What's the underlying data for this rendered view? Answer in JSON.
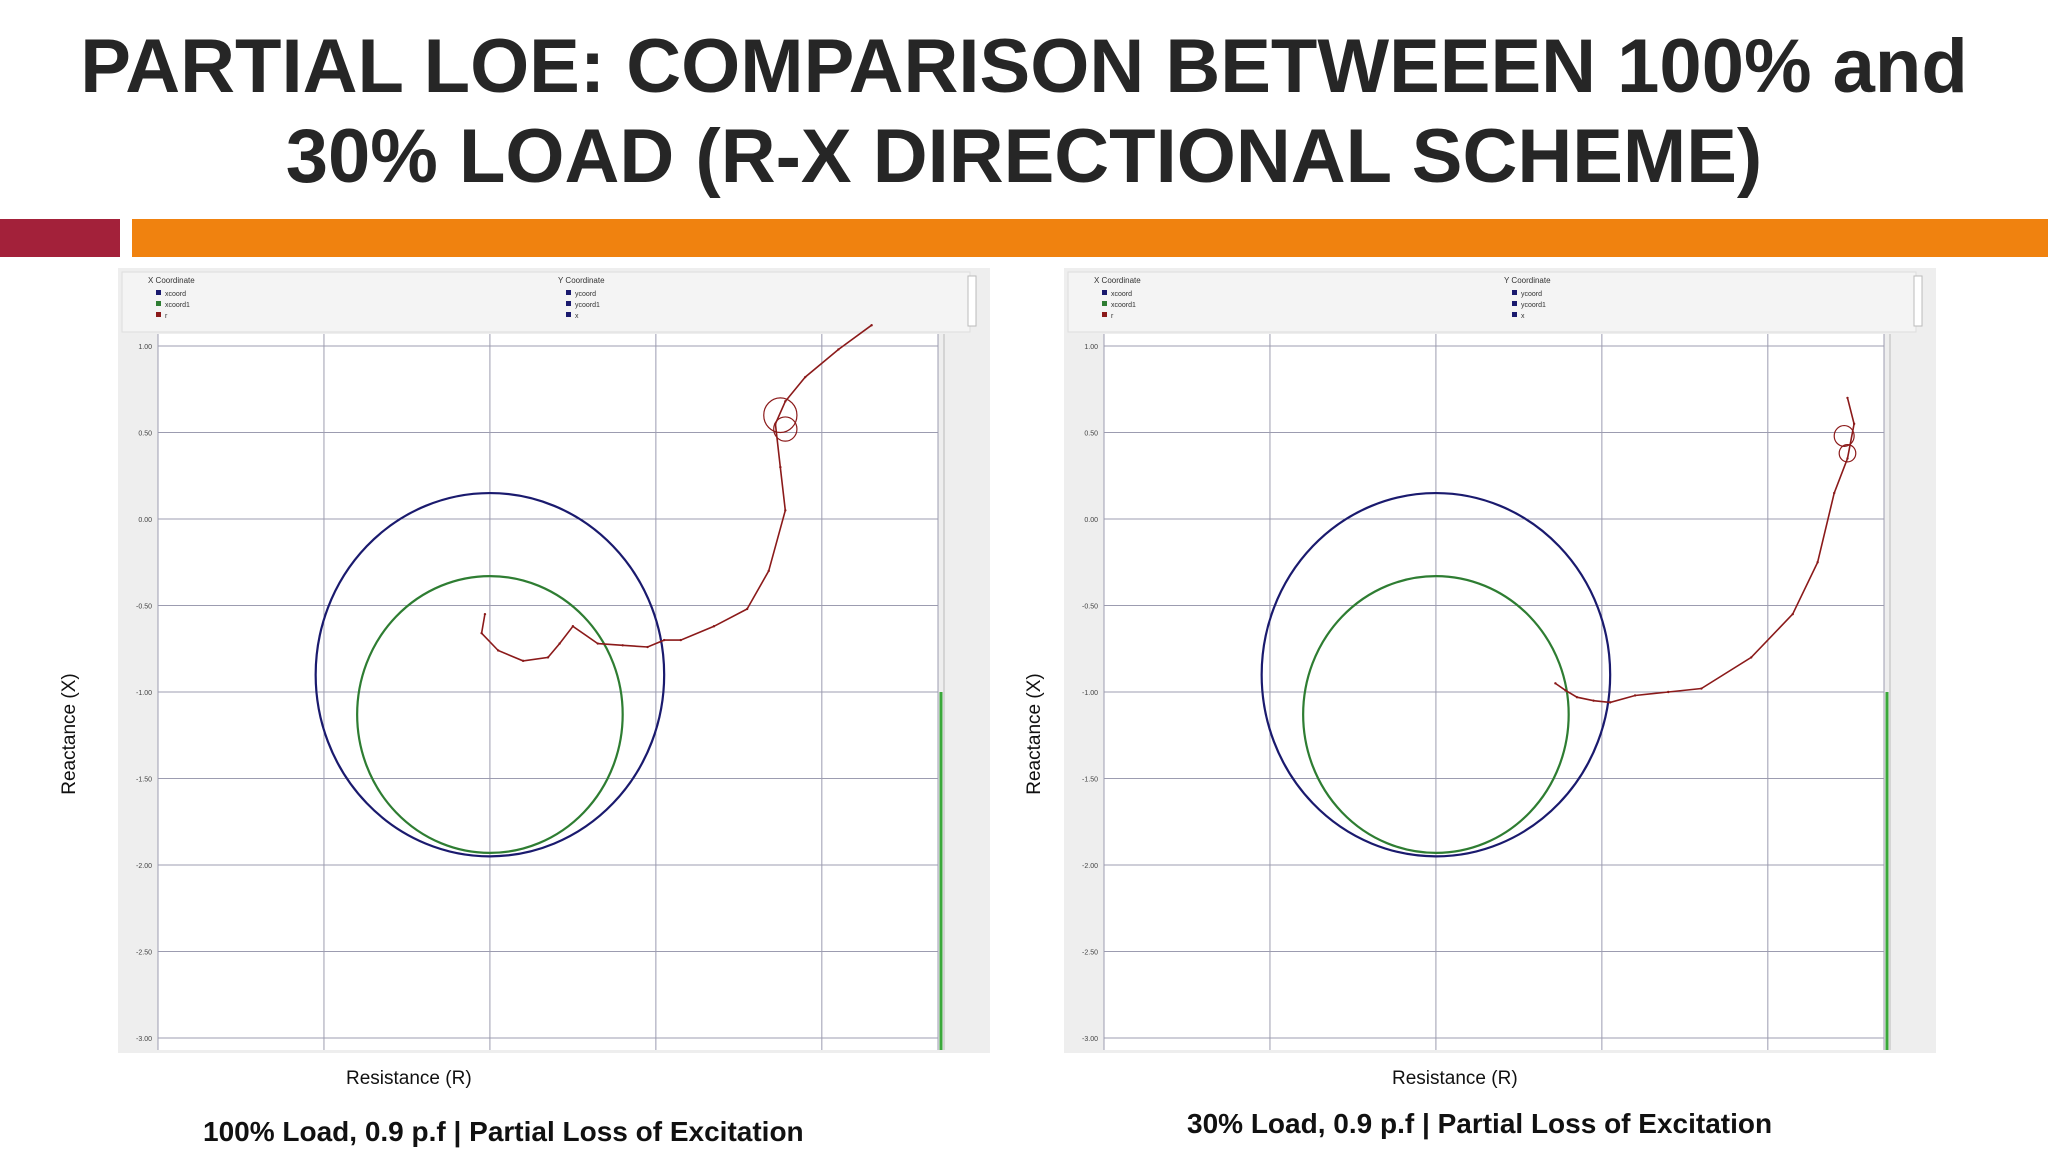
{
  "slide": {
    "title_line1": "PARTIAL LOE: COMPARISON BETWEEEN 100% and",
    "title_line2": "30% LOAD (R-X DIRECTIONAL SCHEME)",
    "accent_colors": {
      "red": "#a3213a",
      "orange": "#f0820f"
    }
  },
  "chart_data": [
    {
      "type": "scatter",
      "caption": "100% Load, 0.9 p.f | Partial Loss of Excitation",
      "xlabel": "Resistance (R)",
      "ylabel": "Reactance (X)",
      "xlim": [
        -2.0,
        2.7
      ],
      "ylim": [
        -3.0,
        1.0
      ],
      "xticks": [
        "-2.0",
        "-1.0",
        "0.0",
        "1.0",
        "2.0"
      ],
      "yticks": [
        "1.00",
        "0.50",
        "0.00",
        "-0.50",
        "-1.00",
        "-1.50",
        "-2.00",
        "-2.50",
        "-3.00"
      ],
      "grid": true,
      "legend": {
        "x_title": "X Coordinate",
        "y_title": "Y Coordinate",
        "x_items": [
          "xcoord",
          "xcoord1",
          "r"
        ],
        "y_items": [
          "ycoord",
          "ycoord1",
          "x"
        ],
        "colors": [
          "#1a1a6e",
          "#2e7d32",
          "#8b1a1a"
        ]
      },
      "circles": [
        {
          "name": "xcoord",
          "cx": 0.0,
          "cy": -0.9,
          "r": 1.05,
          "color": "#1a1a6e"
        },
        {
          "name": "xcoord1",
          "cx": 0.0,
          "cy": -1.13,
          "r": 0.8,
          "color": "#2e7d32"
        }
      ],
      "trajectory": {
        "name": "r",
        "color": "#8b1a1a",
        "points": [
          [
            2.3,
            1.12
          ],
          [
            2.1,
            0.98
          ],
          [
            1.9,
            0.82
          ],
          [
            1.78,
            0.68
          ],
          [
            1.72,
            0.55
          ],
          [
            1.75,
            0.3
          ],
          [
            1.78,
            0.05
          ],
          [
            1.68,
            -0.3
          ],
          [
            1.55,
            -0.52
          ],
          [
            1.35,
            -0.62
          ],
          [
            1.15,
            -0.7
          ],
          [
            1.05,
            -0.7
          ],
          [
            0.95,
            -0.74
          ],
          [
            0.8,
            -0.73
          ],
          [
            0.65,
            -0.72
          ],
          [
            0.5,
            -0.62
          ],
          [
            0.42,
            -0.72
          ],
          [
            0.35,
            -0.8
          ],
          [
            0.2,
            -0.82
          ],
          [
            0.05,
            -0.76
          ],
          [
            -0.05,
            -0.66
          ],
          [
            -0.03,
            -0.55
          ]
        ],
        "loops": [
          {
            "cx": 1.75,
            "cy": 0.6,
            "r": 0.1
          },
          {
            "cx": 1.78,
            "cy": 0.52,
            "r": 0.07
          }
        ]
      }
    },
    {
      "type": "scatter",
      "caption": "30% Load, 0.9 p.f | Partial Loss of Excitation",
      "xlabel": "Resistance (R)",
      "ylabel": "Reactance (X)",
      "xlim": [
        -2.0,
        2.7
      ],
      "ylim": [
        -3.0,
        1.0
      ],
      "xticks": [
        "-2.0",
        "-1.0",
        "0.0",
        "1.0",
        "2.0"
      ],
      "yticks": [
        "1.00",
        "0.50",
        "0.00",
        "-0.50",
        "-1.00",
        "-1.50",
        "-2.00",
        "-2.50",
        "-3.00"
      ],
      "grid": true,
      "legend": {
        "x_title": "X Coordinate",
        "y_title": "Y Coordinate",
        "x_items": [
          "xcoord",
          "xcoord1",
          "r"
        ],
        "y_items": [
          "ycoord",
          "ycoord1",
          "x"
        ],
        "colors": [
          "#1a1a6e",
          "#2e7d32",
          "#8b1a1a"
        ]
      },
      "circles": [
        {
          "name": "xcoord",
          "cx": 0.0,
          "cy": -0.9,
          "r": 1.05,
          "color": "#1a1a6e"
        },
        {
          "name": "xcoord1",
          "cx": 0.0,
          "cy": -1.13,
          "r": 0.8,
          "color": "#2e7d32"
        }
      ],
      "trajectory": {
        "name": "r",
        "color": "#8b1a1a",
        "points": [
          [
            2.48,
            0.7
          ],
          [
            2.52,
            0.55
          ],
          [
            2.48,
            0.35
          ],
          [
            2.4,
            0.15
          ],
          [
            2.3,
            -0.25
          ],
          [
            2.15,
            -0.55
          ],
          [
            1.9,
            -0.8
          ],
          [
            1.6,
            -0.98
          ],
          [
            1.4,
            -1.0
          ],
          [
            1.2,
            -1.02
          ],
          [
            1.05,
            -1.06
          ],
          [
            0.95,
            -1.05
          ],
          [
            0.85,
            -1.03
          ],
          [
            0.78,
            -0.99
          ],
          [
            0.72,
            -0.95
          ]
        ],
        "loops": [
          {
            "cx": 2.46,
            "cy": 0.48,
            "r": 0.06
          },
          {
            "cx": 2.48,
            "cy": 0.38,
            "r": 0.05
          }
        ]
      }
    }
  ]
}
